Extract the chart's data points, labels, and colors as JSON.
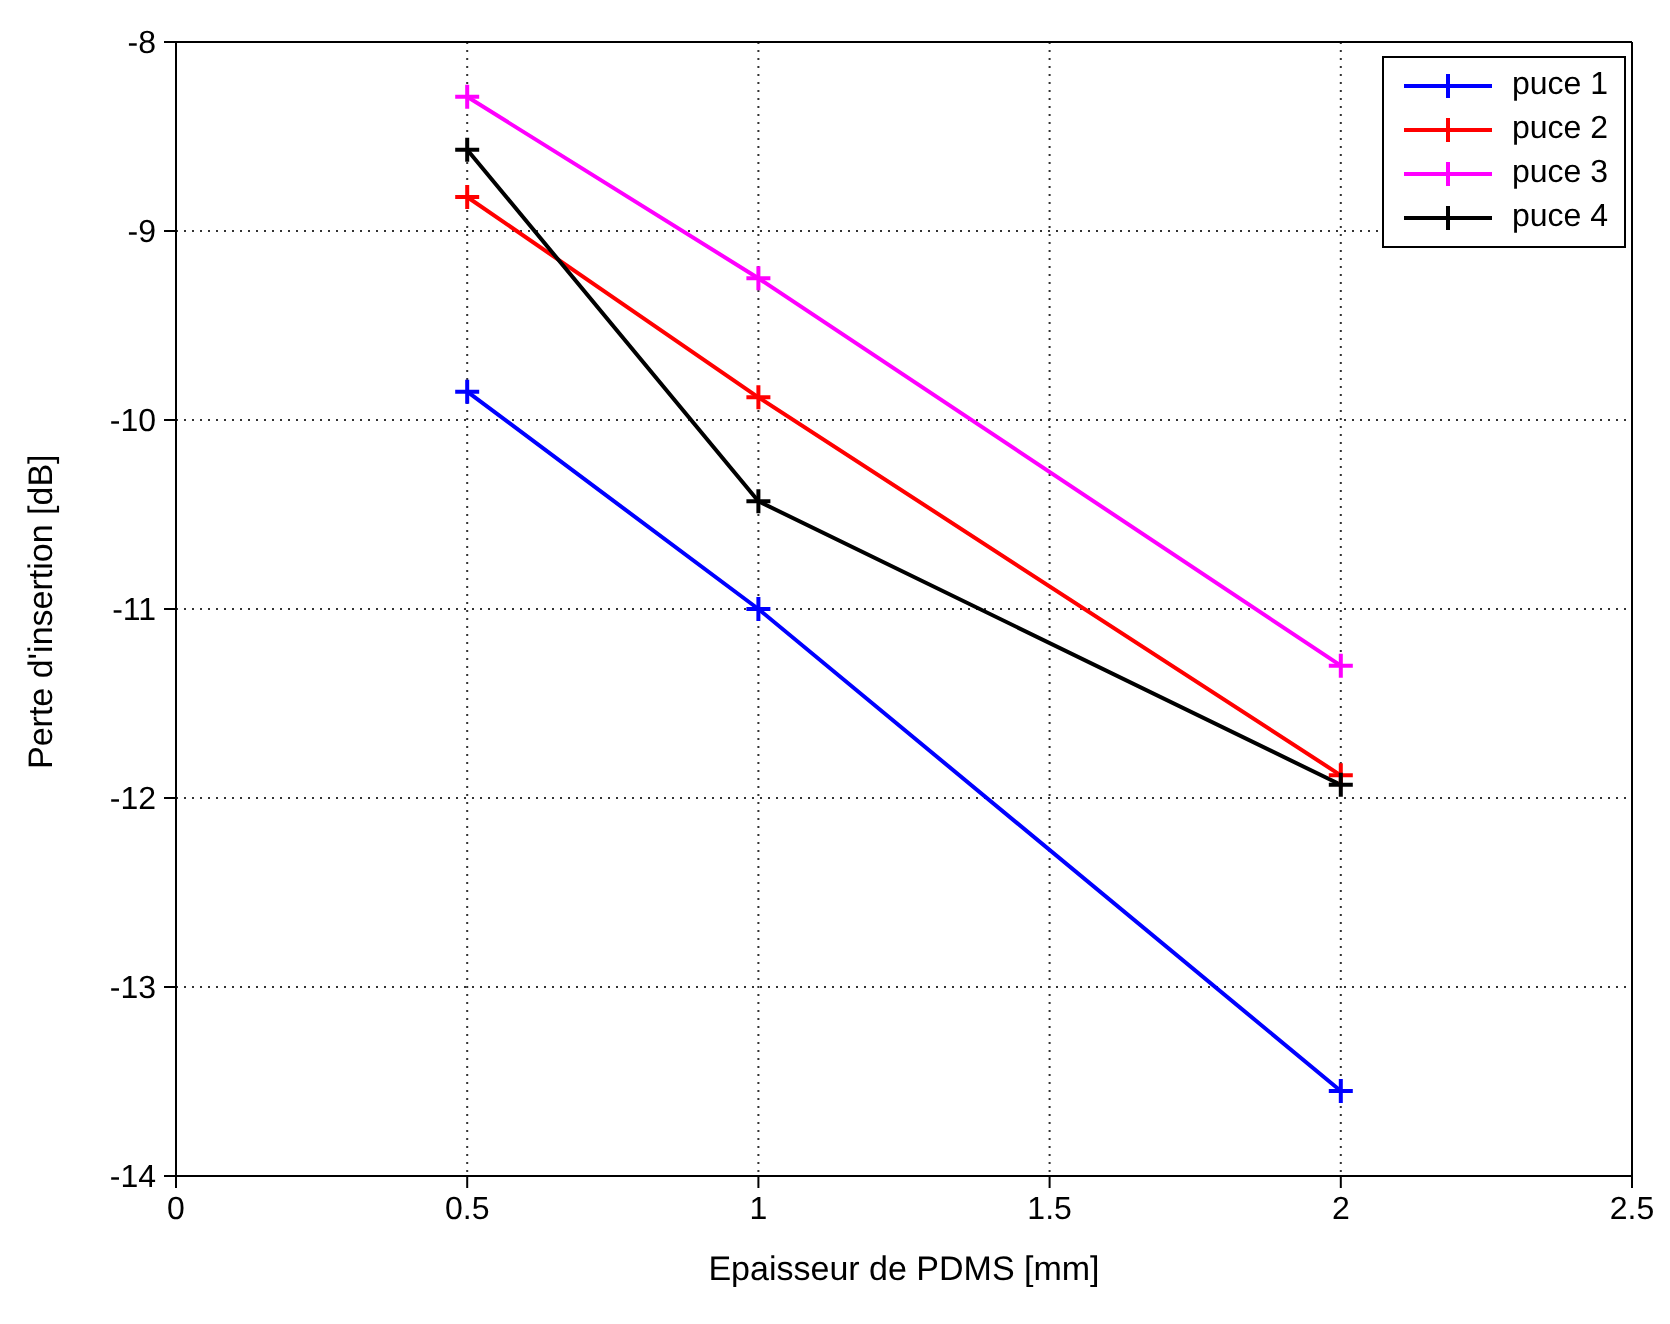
{
  "chart_data": {
    "type": "line",
    "xlabel": "Epaisseur de PDMS [mm]",
    "ylabel": "Perte d'insertion [dB]",
    "x": [
      0.5,
      1,
      2
    ],
    "series": [
      {
        "name": "puce 1",
        "color": "#0000ff",
        "values": [
          -9.85,
          -11.0,
          -13.55
        ]
      },
      {
        "name": "puce 2",
        "color": "#ff0000",
        "values": [
          -8.82,
          -9.88,
          -11.88
        ]
      },
      {
        "name": "puce 3",
        "color": "#ff00ff",
        "values": [
          -8.29,
          -9.25,
          -11.3
        ]
      },
      {
        "name": "puce 4",
        "color": "#000000",
        "values": [
          -8.57,
          -10.43,
          -11.93
        ]
      }
    ],
    "xlim": [
      0,
      2.5
    ],
    "xticks": [
      0,
      0.5,
      1,
      1.5,
      2,
      2.5
    ],
    "ylim": [
      -14,
      -8
    ],
    "yticks": [
      -14,
      -13,
      -12,
      -11,
      -10,
      -9,
      -8
    ],
    "grid": true,
    "legend": "top right",
    "marker": "cross",
    "line_style": "solid"
  }
}
